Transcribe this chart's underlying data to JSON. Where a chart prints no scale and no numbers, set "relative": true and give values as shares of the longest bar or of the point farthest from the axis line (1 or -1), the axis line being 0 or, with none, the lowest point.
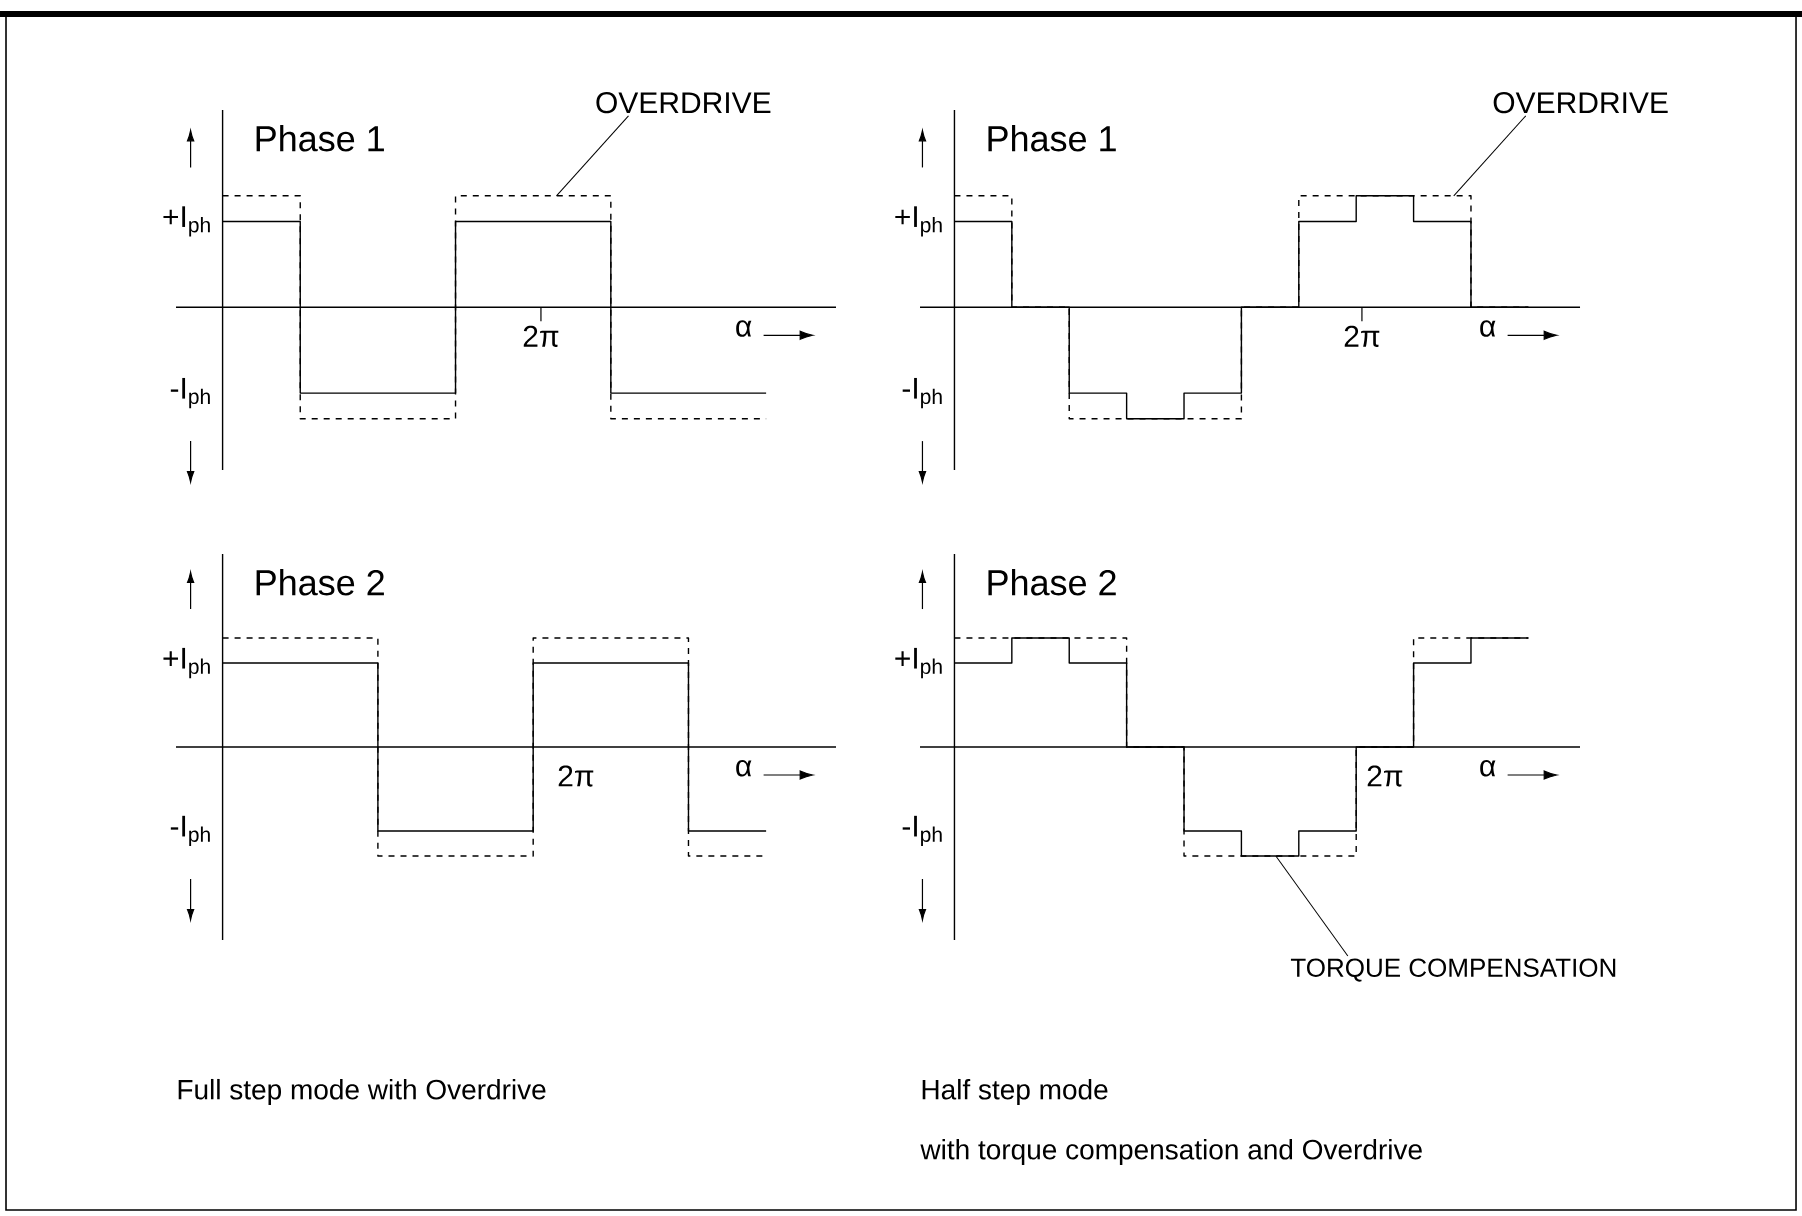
{
  "chart_data": [
    {
      "type": "step",
      "relative": true,
      "title": "Phase 1",
      "xlabel": "α",
      "categories": [
        null,
        null,
        null,
        null,
        null,
        null,
        null,
        null
      ],
      "series": [
        {
          "color": "#000000",
          "line_style": "dashed",
          "values": [
            1,
            -1,
            -1,
            1,
            1,
            -1,
            -1,
            -1
          ]
        },
        {
          "color": "#000000",
          "line_style": "solid",
          "values": [
            0.77,
            -0.77,
            -0.77,
            0.77,
            0.77,
            -0.77,
            -0.77,
            -0.77
          ]
        }
      ],
      "annotations": [
        "+I$_{ph}$",
        "-I$_{ph}$",
        "2π",
        "OVERDRIVE"
      ]
    },
    {
      "type": "step",
      "relative": true,
      "title": "Phase 1",
      "xlabel": "α",
      "categories": [
        null,
        null,
        null,
        null,
        null,
        null,
        null,
        null,
        null,
        null,
        null
      ],
      "series": [
        {
          "color": "#000000",
          "line_style": "dashed",
          "values": [
            1,
            0,
            -1,
            -1,
            -1,
            0,
            1,
            1,
            1,
            0,
            0
          ]
        },
        {
          "color": "#000000",
          "line_style": "solid",
          "values": [
            0.77,
            0,
            -0.77,
            -1,
            -0.77,
            0,
            0.77,
            1,
            0.77,
            0,
            0
          ]
        }
      ],
      "annotations": [
        "+I$_{ph}$",
        "-I$_{ph}$",
        "2π",
        "OVERDRIVE"
      ]
    },
    {
      "type": "step",
      "relative": true,
      "title": "Phase 2",
      "xlabel": "α",
      "categories": [
        null,
        null,
        null,
        null,
        null,
        null,
        null,
        null
      ],
      "series": [
        {
          "color": "#000000",
          "line_style": "dashed",
          "values": [
            1,
            1,
            -1,
            -1,
            1,
            1,
            -1,
            -1
          ]
        },
        {
          "color": "#000000",
          "line_style": "solid",
          "values": [
            0.77,
            0.77,
            -0.77,
            -0.77,
            0.77,
            0.77,
            -0.77,
            -0.77
          ]
        }
      ],
      "annotations": [
        "+I$_{ph}$",
        "-I$_{ph}$",
        "2π",
        "Full step mode with Overdrive"
      ]
    },
    {
      "type": "step",
      "relative": true,
      "title": "Phase 2",
      "xlabel": "α",
      "categories": [
        null,
        null,
        null,
        null,
        null,
        null,
        null,
        null,
        null,
        null,
        null
      ],
      "series": [
        {
          "color": "#000000",
          "line_style": "dashed",
          "values": [
            1,
            1,
            1,
            0,
            -1,
            -1,
            -1,
            0,
            1,
            1,
            1
          ]
        },
        {
          "color": "#000000",
          "line_style": "solid",
          "values": [
            0.77,
            1,
            0.77,
            0,
            -0.77,
            -1,
            -0.77,
            0,
            0.77,
            1,
            1
          ]
        }
      ],
      "annotations": [
        "+I$_{ph}$",
        "-I$_{ph}$",
        "2π",
        "TORQUE COMPENSATION",
        "Half step mode",
        "with torque compensation and Overdrive"
      ]
    }
  ]
}
